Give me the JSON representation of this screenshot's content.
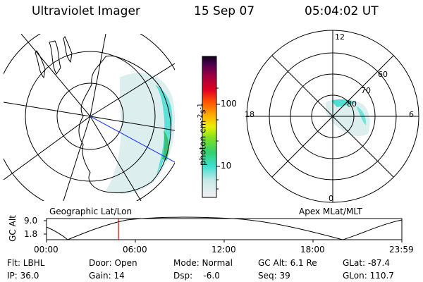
{
  "header": {
    "instrument": "Ultraviolet Imager",
    "date": "15 Sep 07",
    "time": "05:04:02 UT"
  },
  "colorbar": {
    "label": "photon cm",
    "label_exp1": "-2",
    "label_unit2": "s",
    "label_exp2": "-1",
    "ticks": [
      "100",
      "10"
    ]
  },
  "geo_panel": {
    "caption": "Geographic Lat/Lon"
  },
  "polar_panel": {
    "caption": "Apex MLat/MLT",
    "mlt_labels": {
      "top": "12",
      "left": "18",
      "right": "6",
      "bottom": "0"
    },
    "lat_labels": [
      "60",
      "70",
      "80"
    ]
  },
  "altitude_plot": {
    "ylabel": "GC Alt",
    "yticks": [
      "9.0",
      "1.8"
    ],
    "xticks": [
      "00:00",
      "06:00",
      "12:00",
      "18:00",
      "23:59"
    ],
    "current_marker_color": "#dd0000"
  },
  "status": {
    "row1": {
      "flt": "Flt: LBHL",
      "door": "Door: Open",
      "mode": "Mode: Normal",
      "gcalt": "GC Alt: 6.1 Re",
      "glat": "GLat: -87.4"
    },
    "row2": {
      "ip": "IP: 36.0",
      "gain": "Gain: 14",
      "dsp": "Dsp:    -6.0",
      "seq": "Seq: 39",
      "glon": "GLon: 110.7"
    }
  }
}
